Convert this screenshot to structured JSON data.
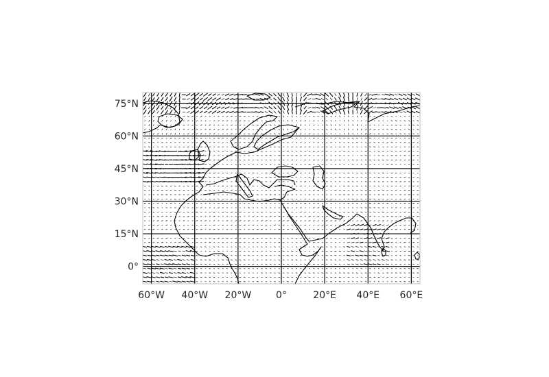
{
  "map": {
    "projection": "equirectangular",
    "lon_range": [
      -64,
      64
    ],
    "lat_range": [
      -8,
      80
    ],
    "gridlines": true,
    "gridline_color": "#000000",
    "coastline_color": "#000000",
    "vector_color": "#000000",
    "x_ticks": [
      {
        "value": -60,
        "label": "60°W"
      },
      {
        "value": -40,
        "label": "40°W"
      },
      {
        "value": -20,
        "label": "20°W"
      },
      {
        "value": 0,
        "label": "0°"
      },
      {
        "value": 20,
        "label": "20°E"
      },
      {
        "value": 40,
        "label": "40°E"
      },
      {
        "value": 60,
        "label": "60°E"
      }
    ],
    "y_ticks": [
      {
        "value": 75,
        "label": "75°N"
      },
      {
        "value": 60,
        "label": "60°N"
      },
      {
        "value": 45,
        "label": "45°N"
      },
      {
        "value": 30,
        "label": "30°N"
      },
      {
        "value": 15,
        "label": "15°N"
      },
      {
        "value": 0,
        "label": "0°"
      }
    ],
    "layers": [
      "coastlines",
      "wind-vectors",
      "graticule"
    ]
  }
}
